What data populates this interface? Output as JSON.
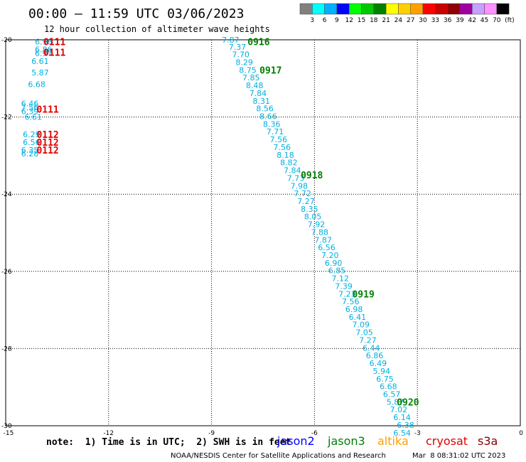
{
  "header": {
    "title": "00:00 – 11:59 UTC 03/06/2023",
    "subtitle": "12 hour collection of altimeter wave heights"
  },
  "colorbar": {
    "labels": [
      "3",
      "6",
      "9",
      "12",
      "15",
      "18",
      "21",
      "24",
      "27",
      "30",
      "33",
      "36",
      "39",
      "42",
      "45",
      "70"
    ],
    "unit": "(ft)",
    "colors": [
      "#808080",
      "#00ffff",
      "#00b0ff",
      "#0000ff",
      "#00ff00",
      "#00c800",
      "#008000",
      "#ffff00",
      "#ffd000",
      "#ffa000",
      "#ff0000",
      "#c80000",
      "#900000",
      "#a000a0",
      "#c8a0ff",
      "#ff90ff",
      "#000000"
    ]
  },
  "footer": {
    "note": "note:  1) Time is in UTC;  2) SWH is in feet",
    "missions": [
      {
        "name": "jason2",
        "color": "#0000ff"
      },
      {
        "name": "jason3",
        "color": "#008000"
      },
      {
        "name": "altika",
        "color": "#ffa000"
      },
      {
        "name": "cryosat",
        "color": "#e00000"
      },
      {
        "name": "s3a",
        "color": "#800000"
      }
    ],
    "credit": "NOAA/NESDIS Center for Satellite Applications and Research",
    "timestamp": "Mar  8 08:31:02 UTC 2023"
  },
  "chart_data": {
    "type": "scatter",
    "xlim": [
      -15,
      0
    ],
    "ylim": [
      -30,
      -20
    ],
    "xticks": [
      "-15",
      "-12",
      "-9",
      "-6",
      "-3",
      "0"
    ],
    "yticks": [
      "-20",
      "-22",
      "-24",
      "-26",
      "-28",
      "-30"
    ],
    "grid": true,
    "point_color": "#00b0e0",
    "series": [
      {
        "color": "#00b0e0",
        "points": [
          {
            "x": -14.15,
            "y": -20.05,
            "v": "6.98"
          },
          {
            "x": -14.15,
            "y": -20.25,
            "v": "6.86"
          },
          {
            "x": -14.15,
            "y": -20.35,
            "v": "6.97"
          },
          {
            "x": -14.25,
            "y": -20.55,
            "v": "6.61"
          },
          {
            "x": -14.25,
            "y": -20.85,
            "v": "5.87"
          },
          {
            "x": -14.35,
            "y": -21.15,
            "v": "6.68"
          },
          {
            "x": -14.55,
            "y": -21.65,
            "v": "6.46"
          },
          {
            "x": -14.55,
            "y": -21.75,
            "v": "7.56"
          },
          {
            "x": -14.55,
            "y": -21.85,
            "v": "6.39"
          },
          {
            "x": -14.45,
            "y": -22.0,
            "v": "6.61"
          },
          {
            "x": -14.5,
            "y": -22.45,
            "v": "6.29"
          },
          {
            "x": -14.5,
            "y": -22.65,
            "v": "6.56"
          },
          {
            "x": -14.55,
            "y": -22.85,
            "v": "6.35"
          },
          {
            "x": -14.55,
            "y": -22.95,
            "v": "6.28"
          },
          {
            "x": -8.7,
            "y": -20.0,
            "v": "7.87"
          },
          {
            "x": -8.5,
            "y": -20.18,
            "v": "7.37"
          },
          {
            "x": -8.4,
            "y": -20.38,
            "v": "7.70"
          },
          {
            "x": -8.3,
            "y": -20.58,
            "v": "8.29"
          },
          {
            "x": -8.2,
            "y": -20.78,
            "v": "8.75"
          },
          {
            "x": -8.1,
            "y": -20.98,
            "v": "7.85"
          },
          {
            "x": -8.0,
            "y": -21.18,
            "v": "8.48"
          },
          {
            "x": -7.9,
            "y": -21.38,
            "v": "7.84"
          },
          {
            "x": -7.8,
            "y": -21.58,
            "v": "8.31"
          },
          {
            "x": -7.7,
            "y": -21.78,
            "v": "8.56"
          },
          {
            "x": -7.6,
            "y": -21.98,
            "v": "8.66"
          },
          {
            "x": -7.5,
            "y": -22.18,
            "v": "8.36"
          },
          {
            "x": -7.4,
            "y": -22.38,
            "v": "7.71"
          },
          {
            "x": -7.3,
            "y": -22.58,
            "v": "7.56"
          },
          {
            "x": -7.2,
            "y": -22.78,
            "v": "7.56"
          },
          {
            "x": -7.1,
            "y": -22.98,
            "v": "8.18"
          },
          {
            "x": -7.0,
            "y": -23.18,
            "v": "8.82"
          },
          {
            "x": -6.9,
            "y": -23.38,
            "v": "7.84"
          },
          {
            "x": -6.8,
            "y": -23.58,
            "v": "7.73"
          },
          {
            "x": -6.7,
            "y": -23.78,
            "v": "7.98"
          },
          {
            "x": -6.6,
            "y": -23.98,
            "v": "7.72"
          },
          {
            "x": -6.5,
            "y": -24.18,
            "v": "7.27"
          },
          {
            "x": -6.4,
            "y": -24.38,
            "v": "8.35"
          },
          {
            "x": -6.3,
            "y": -24.58,
            "v": "8.05"
          },
          {
            "x": -6.2,
            "y": -24.78,
            "v": "7.92"
          },
          {
            "x": -6.1,
            "y": -24.98,
            "v": "7.88"
          },
          {
            "x": -6.0,
            "y": -25.18,
            "v": "7.87"
          },
          {
            "x": -5.9,
            "y": -25.38,
            "v": "6.56"
          },
          {
            "x": -5.8,
            "y": -25.58,
            "v": "7.20"
          },
          {
            "x": -5.7,
            "y": -25.78,
            "v": "6.90"
          },
          {
            "x": -5.6,
            "y": -25.98,
            "v": "6.85"
          },
          {
            "x": -5.5,
            "y": -26.18,
            "v": "7.12"
          },
          {
            "x": -5.4,
            "y": -26.38,
            "v": "7.39"
          },
          {
            "x": -5.3,
            "y": -26.58,
            "v": "7.23"
          },
          {
            "x": -5.2,
            "y": -26.78,
            "v": "7.56"
          },
          {
            "x": -5.1,
            "y": -26.98,
            "v": "6.98"
          },
          {
            "x": -5.0,
            "y": -27.18,
            "v": "6.41"
          },
          {
            "x": -4.9,
            "y": -27.38,
            "v": "7.09"
          },
          {
            "x": -4.8,
            "y": -27.58,
            "v": "7.05"
          },
          {
            "x": -4.7,
            "y": -27.78,
            "v": "7.27"
          },
          {
            "x": -4.6,
            "y": -27.98,
            "v": "6.44"
          },
          {
            "x": -4.5,
            "y": -28.18,
            "v": "6.86"
          },
          {
            "x": -4.4,
            "y": -28.38,
            "v": "6.49"
          },
          {
            "x": -4.3,
            "y": -28.58,
            "v": "5.94"
          },
          {
            "x": -4.2,
            "y": -28.78,
            "v": "6.75"
          },
          {
            "x": -4.1,
            "y": -28.98,
            "v": "6.68"
          },
          {
            "x": -4.0,
            "y": -29.18,
            "v": "6.57"
          },
          {
            "x": -3.9,
            "y": -29.38,
            "v": "5.87"
          },
          {
            "x": -3.8,
            "y": -29.58,
            "v": "7.02"
          },
          {
            "x": -3.7,
            "y": -29.78,
            "v": "6.14"
          },
          {
            "x": -3.6,
            "y": -29.98,
            "v": "6.38"
          },
          {
            "x": -3.7,
            "y": -30.18,
            "v": "6.54"
          }
        ]
      }
    ],
    "annotations": [
      {
        "text": "0111",
        "x": -13.9,
        "y": -20.05,
        "color": "#e00000"
      },
      {
        "text": "0111",
        "x": -13.9,
        "y": -20.32,
        "color": "#e00000"
      },
      {
        "text": "0111",
        "x": -14.1,
        "y": -21.8,
        "color": "#e00000"
      },
      {
        "text": "0112",
        "x": -14.1,
        "y": -22.45,
        "color": "#e00000"
      },
      {
        "text": "0112",
        "x": -14.1,
        "y": -22.65,
        "color": "#e00000"
      },
      {
        "text": "0112",
        "x": -14.1,
        "y": -22.85,
        "color": "#e00000"
      },
      {
        "text": "0916",
        "x": -7.95,
        "y": -20.05,
        "color": "#008000"
      },
      {
        "text": "0917",
        "x": -7.6,
        "y": -20.78,
        "color": "#008000"
      },
      {
        "text": "0918",
        "x": -6.4,
        "y": -23.5,
        "color": "#008000"
      },
      {
        "text": "0919",
        "x": -4.9,
        "y": -26.58,
        "color": "#008000"
      },
      {
        "text": "0920",
        "x": -3.6,
        "y": -29.38,
        "color": "#008000"
      }
    ]
  }
}
